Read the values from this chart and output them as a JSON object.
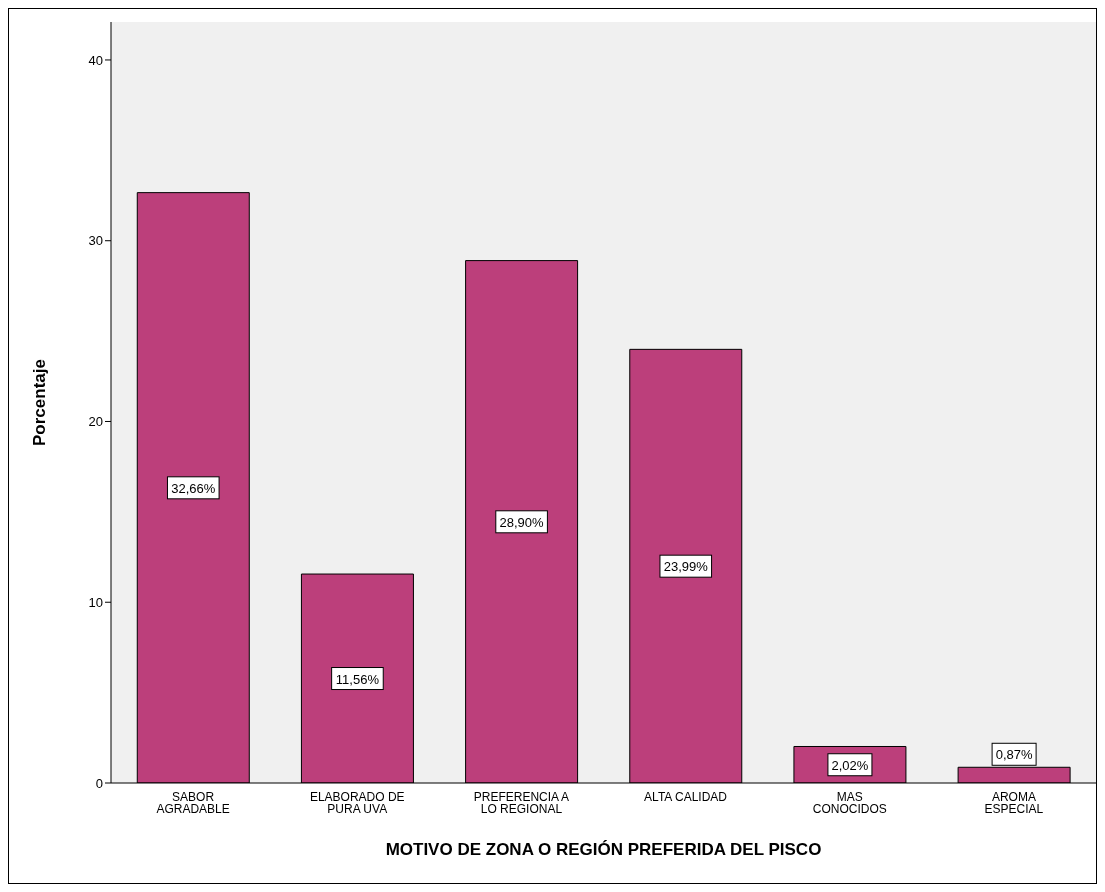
{
  "chart_data": {
    "type": "bar",
    "xlabel": "MOTIVO DE ZONA O REGIÓN PREFERIDA DEL PISCO",
    "ylabel": "Porcentaje",
    "categories": [
      "SABOR\nAGRADABLE",
      "ELABORADO DE\nPURA UVA",
      "PREFERENCIA A\nLO REGIONAL",
      "ALTA CALIDAD",
      "MAS\nCONOCIDOS",
      "AROMA\nESPECIAL"
    ],
    "values": [
      32.66,
      11.56,
      28.9,
      23.99,
      2.02,
      0.87
    ],
    "value_labels": [
      "32,66%",
      "11,56%",
      "28,90%",
      "23,99%",
      "2,02%",
      "0,87%"
    ],
    "color": "#bc3f7b",
    "ylim": [
      0,
      42.1
    ],
    "yticks": [
      0,
      10,
      20,
      30,
      40
    ],
    "grid": false
  }
}
